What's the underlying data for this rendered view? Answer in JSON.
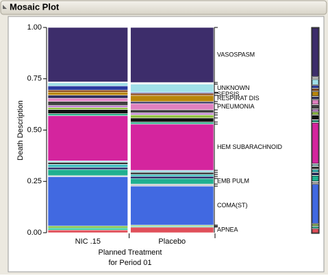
{
  "chart_data": {
    "type": "mosaic",
    "title": "Mosaic Plot",
    "categories": [
      "NIC .15",
      "Placebo"
    ],
    "widths": [
      0.49,
      0.51
    ],
    "ylabel": "Death Description",
    "xlabel": [
      "Planned Treatment",
      "for Period 01"
    ],
    "ylim": [
      0,
      1
    ],
    "yticks": [
      {
        "value": 0,
        "label": "0.00"
      },
      {
        "value": 0.25,
        "label": "0.25"
      },
      {
        "value": 0.5,
        "label": "0.50"
      },
      {
        "value": 0.75,
        "label": "0.75"
      },
      {
        "value": 1,
        "label": "1.00"
      }
    ],
    "series": [
      {
        "name": "APNEA",
        "color": "#e0505a",
        "values": [
          0.013,
          0.027
        ]
      },
      {
        "name": null,
        "color": "#2ecc9a",
        "values": [
          0.01,
          0.005
        ]
      },
      {
        "name": null,
        "color": "#7fbf3f",
        "values": [
          0.01,
          0.005
        ]
      },
      {
        "name": "COMA(ST)",
        "color": "#4169e1",
        "values": [
          0.24,
          0.19
        ]
      },
      {
        "name": null,
        "color": "#cccccc",
        "values": [
          0.005,
          0.01
        ]
      },
      {
        "name": "EMB PULM",
        "color": "#20b090",
        "values": [
          0.03,
          0.027
        ]
      },
      {
        "name": null,
        "color": "#1a1a5e",
        "values": [
          0.01,
          0.01
        ]
      },
      {
        "name": null,
        "color": "#40c0c0",
        "values": [
          0.015,
          0.01
        ]
      },
      {
        "name": null,
        "color": "#303030",
        "values": [
          0.01,
          0.01
        ]
      },
      {
        "name": null,
        "color": "#a0d8e0",
        "values": [
          0.007,
          0.01
        ]
      },
      {
        "name": "HEM SUBARACHNOID",
        "color": "#d4259e",
        "values": [
          0.22,
          0.225
        ]
      },
      {
        "name": null,
        "color": "#2ab08a",
        "values": [
          0.01,
          0.01
        ]
      },
      {
        "name": null,
        "color": "#111111",
        "values": [
          0.02,
          0.02
        ]
      },
      {
        "name": null,
        "color": "#90c040",
        "values": [
          0.01,
          0.015
        ]
      },
      {
        "name": null,
        "color": "#c080d0",
        "values": [
          0.01,
          0.01
        ]
      },
      {
        "name": null,
        "color": "#404040",
        "values": [
          0.02,
          0.015
        ]
      },
      {
        "name": "PNEUMONIA",
        "color": "#e080c0",
        "values": [
          0.015,
          0.03
        ]
      },
      {
        "name": null,
        "color": "#303060",
        "values": [
          0.015,
          0.01
        ]
      },
      {
        "name": "RESPIRAT DIS",
        "color": "#b8860b",
        "values": [
          0.015,
          0.03
        ]
      },
      {
        "name": "SEPSIS",
        "color": "#8b4513",
        "values": [
          0.01,
          0.01
        ]
      },
      {
        "name": null,
        "color": "#2a3aa0",
        "values": [
          0.02,
          0.005
        ]
      },
      {
        "name": "UNKNOWN",
        "color": "#a0e0e8",
        "values": [
          0.015,
          0.04
        ]
      },
      {
        "name": null,
        "color": "#f0f0f0",
        "values": [
          0.005,
          0.008
        ]
      },
      {
        "name": "VASOSPASM",
        "color": "#3d2d6b",
        "values": [
          0.265,
          0.268
        ]
      }
    ]
  }
}
